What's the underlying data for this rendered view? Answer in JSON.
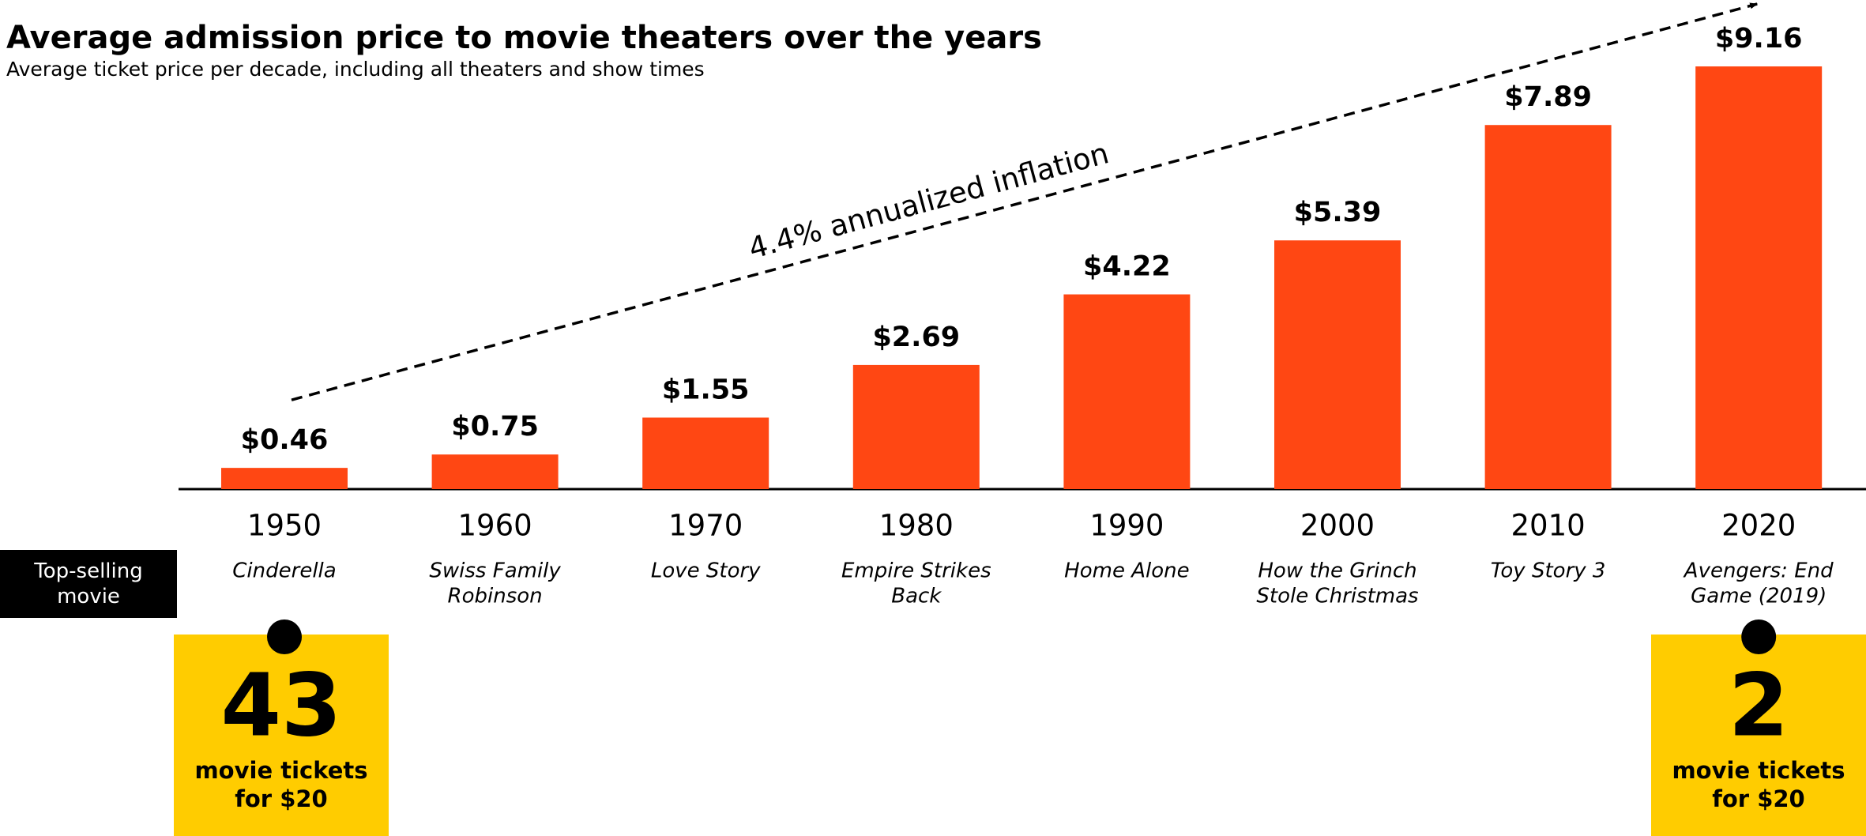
{
  "chart_data": {
    "type": "bar",
    "title": "Average admission price to movie theaters over the years",
    "subtitle": "Average ticket price per decade, including all theaters and show times",
    "categories": [
      "1950",
      "1960",
      "1970",
      "1980",
      "1990",
      "2000",
      "2010",
      "2020"
    ],
    "values": [
      0.46,
      0.75,
      1.55,
      2.69,
      4.22,
      5.39,
      7.89,
      9.16
    ],
    "value_labels": [
      "$0.46",
      "$0.75",
      "$1.55",
      "$2.69",
      "$4.22",
      "$5.39",
      "$7.89",
      "$9.16"
    ],
    "color": "#ff4713",
    "ylim": [
      0,
      10
    ],
    "row_label": "Top-selling movie",
    "movies": [
      [
        "Cinderella"
      ],
      [
        "Swiss Family",
        "Robinson"
      ],
      [
        "Love Story"
      ],
      [
        "Empire Strikes",
        "Back"
      ],
      [
        "Home Alone"
      ],
      [
        "How the Grinch",
        "Stole Christmas"
      ],
      [
        "Toy Story 3"
      ],
      [
        "Avengers: End",
        "Game (2019)"
      ]
    ],
    "trend_annotation": "4.4% annualized inflation",
    "callouts": [
      {
        "value": 43,
        "lines": [
          "movie tickets",
          "for $20"
        ]
      },
      {
        "value": 2,
        "lines": [
          "movie tickets",
          "for $20"
        ]
      }
    ]
  }
}
